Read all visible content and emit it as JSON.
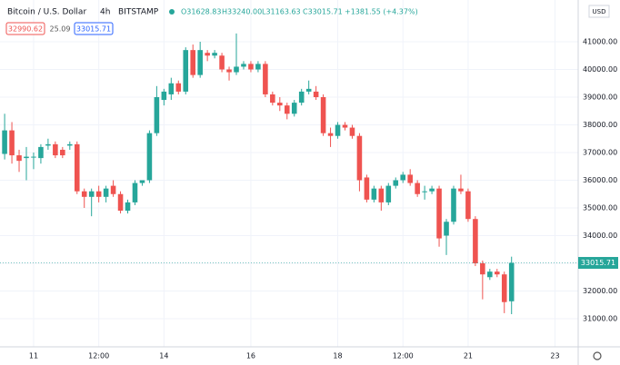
{
  "chart_data": {
    "type": "candlestick",
    "header": {
      "symbol": "Bitcoin / U.S. Dollar",
      "interval": "4h",
      "exchange": "BITSTAMP",
      "open": "O31628.83",
      "high": "H33240.00",
      "low": "L31163.63",
      "close": "C33015.71",
      "change": "+1381.55 (+4.37%)",
      "sell": "32990.62",
      "spread": "25.09",
      "currency": "USD"
    },
    "up_color": "#26a69a",
    "down_color": "#ef5350",
    "open": [
      36950,
      37800,
      36900,
      36800,
      36850,
      36800,
      37250,
      37300,
      37100,
      37250,
      37300,
      35600,
      35400,
      35600,
      35400,
      35800,
      35500,
      34900,
      35200,
      35900,
      36000,
      37700,
      38900,
      39100,
      39500,
      39200,
      40700,
      39800,
      40600,
      40500,
      40500,
      40000,
      39900,
      40100,
      40200,
      40000,
      40200,
      39100,
      38800,
      38700,
      38400,
      38800,
      39200,
      39200,
      39000,
      37700,
      37600,
      38000,
      37900,
      37600,
      36100,
      35300,
      35700,
      35200,
      35800,
      36000,
      36200,
      35900,
      35600,
      35600,
      35700,
      34000,
      34500,
      35700,
      35600,
      34600,
      33000,
      32500,
      32700,
      32600,
      31628.83
    ],
    "high": [
      38400,
      38100,
      37100,
      37200,
      37000,
      37300,
      37500,
      37400,
      37200,
      37400,
      37400,
      35700,
      35700,
      35800,
      35800,
      36000,
      35600,
      35300,
      36000,
      36000,
      37800,
      39400,
      39300,
      39700,
      39600,
      40800,
      40900,
      41000,
      40700,
      40700,
      40600,
      40100,
      41300,
      40300,
      40300,
      40300,
      40300,
      39200,
      39000,
      38800,
      38900,
      39300,
      39600,
      39400,
      39100,
      37900,
      38100,
      38100,
      38000,
      37700,
      36200,
      35800,
      35800,
      35900,
      36100,
      36300,
      36400,
      36000,
      35800,
      35800,
      35800,
      34600,
      35800,
      36200,
      35700,
      34700,
      33100,
      32800,
      32800,
      32700,
      33240
    ],
    "low": [
      36750,
      36600,
      36300,
      36000,
      36400,
      36600,
      37100,
      36800,
      36800,
      37100,
      35500,
      35000,
      34700,
      35200,
      35200,
      35400,
      34800,
      34800,
      35100,
      35800,
      35900,
      37600,
      38700,
      38900,
      39100,
      39100,
      39700,
      39700,
      40300,
      40400,
      39900,
      39600,
      39800,
      40000,
      39900,
      39900,
      39000,
      38700,
      38500,
      38200,
      38300,
      38700,
      39100,
      38900,
      37600,
      37200,
      37500,
      37800,
      37500,
      35600,
      35200,
      35200,
      34900,
      35100,
      35700,
      35900,
      35800,
      35400,
      35300,
      35500,
      33600,
      33300,
      34400,
      35500,
      34500,
      32900,
      31700,
      32400,
      32500,
      31200,
      31163.63
    ],
    "close": [
      37800,
      36900,
      36700,
      36850,
      36850,
      37200,
      37300,
      36900,
      36900,
      37300,
      35600,
      35400,
      35600,
      35400,
      35700,
      35500,
      34900,
      35200,
      35900,
      36000,
      37700,
      39000,
      39200,
      39500,
      39200,
      40700,
      39800,
      40700,
      40500,
      40600,
      40000,
      39900,
      40100,
      40200,
      40000,
      40200,
      39100,
      38800,
      38700,
      38400,
      38800,
      39200,
      39300,
      39000,
      37700,
      37600,
      38000,
      37900,
      37600,
      36000,
      35300,
      35700,
      35200,
      35800,
      36000,
      36200,
      35900,
      35500,
      35600,
      35700,
      33900,
      34500,
      35700,
      35600,
      34600,
      33000,
      32600,
      32700,
      32600,
      31600,
      33015.71
    ],
    "xlim": [
      -0.64,
      79.2
    ],
    "xticks": [
      {
        "value": 4,
        "label": "11"
      },
      {
        "value": 13,
        "label": "12:00"
      },
      {
        "value": 22,
        "label": "14"
      },
      {
        "value": 34,
        "label": "16"
      },
      {
        "value": 46,
        "label": "18"
      },
      {
        "value": 55,
        "label": "12:00"
      },
      {
        "value": 64,
        "label": "21"
      },
      {
        "value": 76,
        "label": "23"
      }
    ],
    "ylim": [
      29984,
      42508
    ],
    "yticks": [
      {
        "value": 31000,
        "label": "31000.00"
      },
      {
        "value": 32000,
        "label": "32000.00"
      },
      {
        "value": 33000,
        "label": "33000.00"
      },
      {
        "value": 34000,
        "label": "34000.00"
      },
      {
        "value": 35000,
        "label": "35000.00"
      },
      {
        "value": 36000,
        "label": "36000.00"
      },
      {
        "value": 37000,
        "label": "37000.00"
      },
      {
        "value": 38000,
        "label": "38000.00"
      },
      {
        "value": 39000,
        "label": "39000.00"
      },
      {
        "value": 40000,
        "label": "40000.00"
      },
      {
        "value": 41000,
        "label": "41000.00"
      }
    ],
    "grid": true
  }
}
